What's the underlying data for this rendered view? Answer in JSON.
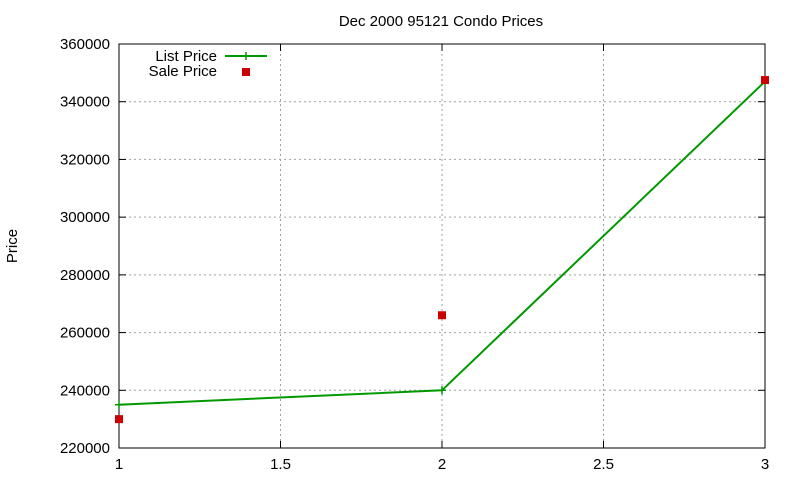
{
  "chart_data": {
    "type": "line",
    "title": "Dec 2000 95121 Condo Prices",
    "xlabel": "",
    "ylabel": "Price",
    "xlim": [
      1,
      3
    ],
    "ylim": [
      220000,
      360000
    ],
    "xticks": [
      "1",
      "1.5",
      "2",
      "2.5",
      "3"
    ],
    "yticks": [
      "220000",
      "240000",
      "260000",
      "280000",
      "300000",
      "320000",
      "340000",
      "360000"
    ],
    "grid": true,
    "legend_position": "top-left",
    "series": [
      {
        "name": "List Price",
        "style": "linespoints",
        "marker": "plus",
        "color": "#009900",
        "x": [
          1,
          2,
          3
        ],
        "y": [
          235000,
          240000,
          347000
        ]
      },
      {
        "name": "Sale Price",
        "style": "points",
        "marker": "square",
        "color": "#cc0000",
        "x": [
          1,
          2,
          3
        ],
        "y": [
          230000,
          266000,
          347500
        ]
      }
    ]
  }
}
